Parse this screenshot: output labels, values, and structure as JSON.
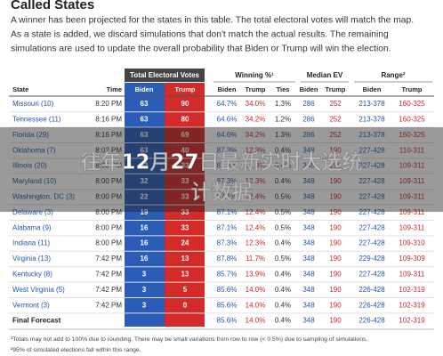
{
  "header": {
    "title": "Called States",
    "intro": [
      "A winner has been projected for the states in this table. The total electoral votes will match the map.",
      "As a state is added, we discard simulations that don't match the actual results. The remaining",
      "simulations are used to update the overall probability that Biden or Trump will win the election."
    ]
  },
  "table": {
    "groups": [
      "Total Electoral Votes",
      "Winning %¹",
      "Median EV",
      "Range²"
    ],
    "columns": [
      "State",
      "Time",
      "Biden",
      "Trump",
      "Biden",
      "Trump",
      "Ties",
      "Biden",
      "Trump",
      "Biden",
      "Trump"
    ],
    "rows": [
      [
        "Missouri (10)",
        "8:20 PM",
        "63",
        "90",
        "64.7%",
        "34.0%",
        "1.3%",
        "286",
        "252",
        "213-378",
        "160-325"
      ],
      [
        "Tennessee (11)",
        "8:16 PM",
        "63",
        "80",
        "64.6%",
        "34.2%",
        "1.2%",
        "286",
        "252",
        "213-378",
        "160-325"
      ],
      [
        "Florida (29)",
        "8:16 PM",
        "63",
        "69",
        "64.6%",
        "34.2%",
        "1.3%",
        "286",
        "252",
        "213-378",
        "160-325"
      ],
      [
        "Oklahoma (7)",
        "8:02 PM",
        "63",
        "40",
        "87.3%",
        "12.3%",
        "0.4%",
        "348",
        "190",
        "227-428",
        "110-311"
      ],
      [
        "Illinois (20)",
        "8:00 PM",
        "52",
        "33",
        "87.3%",
        "12.3%",
        "0.4%",
        "348",
        "190",
        "227-428",
        "109-311"
      ],
      [
        "Maryland (10)",
        "8:00 PM",
        "32",
        "33",
        "87.3%",
        "12.3%",
        "0.4%",
        "348",
        "190",
        "227-428",
        "109-311"
      ],
      [
        "Washington, DC (3)",
        "8:00 PM",
        "22",
        "33",
        "87.1%",
        "12.4%",
        "0.5%",
        "348",
        "190",
        "227-428",
        "109-311"
      ],
      [
        "Delaware (3)",
        "8:00 PM",
        "19",
        "33",
        "87.1%",
        "12.4%",
        "0.5%",
        "348",
        "190",
        "227-428",
        "109-311"
      ],
      [
        "Alabama (9)",
        "8:00 PM",
        "16",
        "33",
        "87.1%",
        "12.4%",
        "0.5%",
        "348",
        "190",
        "227-428",
        "109-311"
      ],
      [
        "Indiana (11)",
        "8:00 PM",
        "16",
        "24",
        "87.3%",
        "12.3%",
        "0.4%",
        "348",
        "190",
        "227-428",
        "109-310"
      ],
      [
        "Virginia (13)",
        "7:42 PM",
        "16",
        "13",
        "87.8%",
        "11.7%",
        "0.5%",
        "348",
        "190",
        "229-428",
        "109-309"
      ],
      [
        "Kentucky (8)",
        "7:42 PM",
        "3",
        "13",
        "85.7%",
        "13.9%",
        "0.4%",
        "348",
        "190",
        "227-428",
        "109-311"
      ],
      [
        "West Virginia (5)",
        "7:42 PM",
        "3",
        "5",
        "85.6%",
        "14.0%",
        "0.4%",
        "348",
        "190",
        "226-428",
        "102-319"
      ],
      [
        "Vermont (3)",
        "7:42 PM",
        "3",
        "0",
        "85.6%",
        "14.0%",
        "0.4%",
        "348",
        "190",
        "226-428",
        "102-319"
      ]
    ],
    "final": {
      "label": "Final Forecast",
      "cells": [
        "85.6%",
        "14.0%",
        "0.4%",
        "348",
        "190",
        "226-428",
        "102-319"
      ]
    }
  },
  "footnotes": [
    "¹Totals may not add to 100% due to rounding. There may be small variations from row to row (< 0.5%) due to sampling of simulations.",
    "²95% of simulated elections fall within this range."
  ],
  "overlay": {
    "lines": [
      "往年12月27日最新实时大选统",
      "计数据"
    ]
  }
}
